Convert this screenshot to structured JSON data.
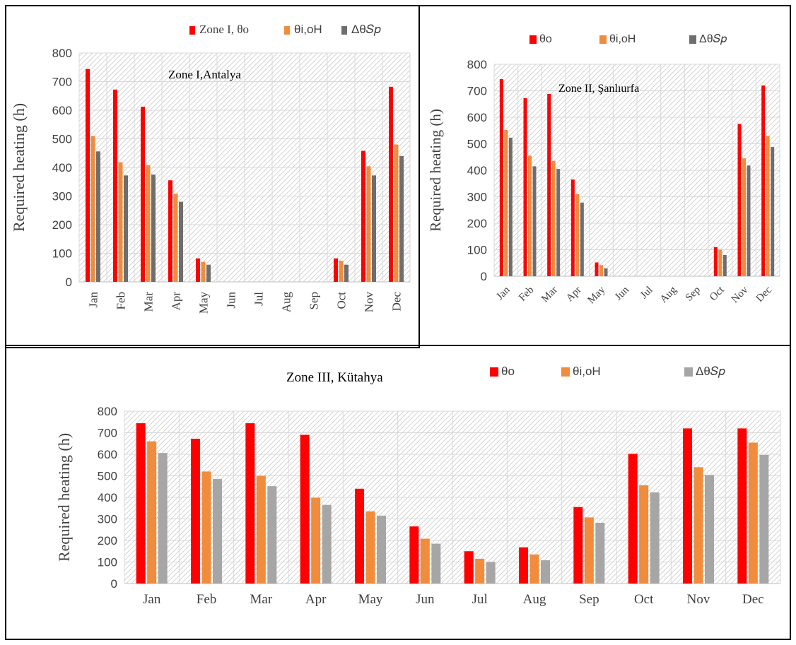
{
  "months": [
    "Jan",
    "Feb",
    "Mar",
    "Apr",
    "May",
    "Jun",
    "Jul",
    "Aug",
    "Sep",
    "Oct",
    "Nov",
    "Dec"
  ],
  "colors": {
    "red": "#ff0000",
    "orange": "#f08c3c",
    "darkgray": "#6e6e6e",
    "lightgray": "#a6a6a6"
  },
  "chart_data": [
    {
      "type": "bar",
      "title": "Zone I,Antalya",
      "ylabel": "Required heating (h)",
      "ylim": [
        0,
        800
      ],
      "yticks": [
        "0",
        "100",
        "200",
        "300",
        "400",
        "500",
        "600",
        "700",
        "800"
      ],
      "categories": [
        "Jan",
        "Feb",
        "Mar",
        "Apr",
        "May",
        "Jun",
        "Jul",
        "Aug",
        "Sep",
        "Oct",
        "Nov",
        "Dec"
      ],
      "series": [
        {
          "name": "Zone I, θo",
          "color": "#ff0000",
          "values": [
            744,
            672,
            612,
            355,
            82,
            0,
            0,
            0,
            0,
            82,
            458,
            682
          ]
        },
        {
          "name": "θi,oH",
          "color": "#f08c3c",
          "values": [
            510,
            418,
            408,
            308,
            70,
            0,
            0,
            0,
            0,
            74,
            404,
            480
          ]
        },
        {
          "name": "Δθ𝑆𝑝",
          "color": "#6e6e6e",
          "values": [
            456,
            372,
            375,
            280,
            60,
            0,
            0,
            0,
            0,
            60,
            372,
            440
          ]
        }
      ],
      "legend": "top",
      "grid": true
    },
    {
      "type": "bar",
      "title": "Zone II, Şanlıurfa",
      "ylabel": "Required heating (h)",
      "ylim": [
        0,
        800
      ],
      "yticks": [
        "0",
        "100",
        "200",
        "300",
        "400",
        "500",
        "600",
        "700",
        "800"
      ],
      "categories": [
        "Jan",
        "Feb",
        "Mar",
        "Apr",
        "May",
        "Jun",
        "Jul",
        "Aug",
        "Sep",
        "Oct",
        "Nov",
        "Dec"
      ],
      "series": [
        {
          "name": "θo",
          "color": "#ff0000",
          "values": [
            744,
            672,
            688,
            365,
            52,
            0,
            0,
            0,
            0,
            110,
            575,
            720
          ]
        },
        {
          "name": "θi,oH",
          "color": "#f08c3c",
          "values": [
            552,
            455,
            435,
            310,
            42,
            0,
            0,
            0,
            0,
            100,
            445,
            530
          ]
        },
        {
          "name": "Δθ𝑆𝑝",
          "color": "#6e6e6e",
          "values": [
            523,
            415,
            405,
            278,
            30,
            0,
            0,
            0,
            0,
            80,
            418,
            488
          ]
        }
      ],
      "legend": "top",
      "grid": true
    },
    {
      "type": "bar",
      "title": "Zone III, Kütahya",
      "ylabel": "Required heating (h)",
      "ylim": [
        0,
        800
      ],
      "yticks": [
        "0",
        "100",
        "200",
        "300",
        "400",
        "500",
        "600",
        "700",
        "800"
      ],
      "categories": [
        "Jan",
        "Feb",
        "Mar",
        "Apr",
        "May",
        "Jun",
        "Jul",
        "Aug",
        "Sep",
        "Oct",
        "Nov",
        "Dec"
      ],
      "series": [
        {
          "name": "θo",
          "color": "#ff0000",
          "values": [
            744,
            672,
            744,
            690,
            440,
            265,
            150,
            168,
            355,
            602,
            720,
            720
          ]
        },
        {
          "name": "θi,oH",
          "color": "#f08c3c",
          "values": [
            660,
            520,
            500,
            398,
            335,
            208,
            115,
            135,
            307,
            456,
            540,
            654
          ]
        },
        {
          "name": "Δθ𝑆𝑝",
          "color": "#a6a6a6",
          "values": [
            606,
            485,
            452,
            365,
            315,
            185,
            100,
            108,
            282,
            423,
            504,
            597
          ]
        }
      ],
      "legend": "top",
      "grid": true
    }
  ]
}
